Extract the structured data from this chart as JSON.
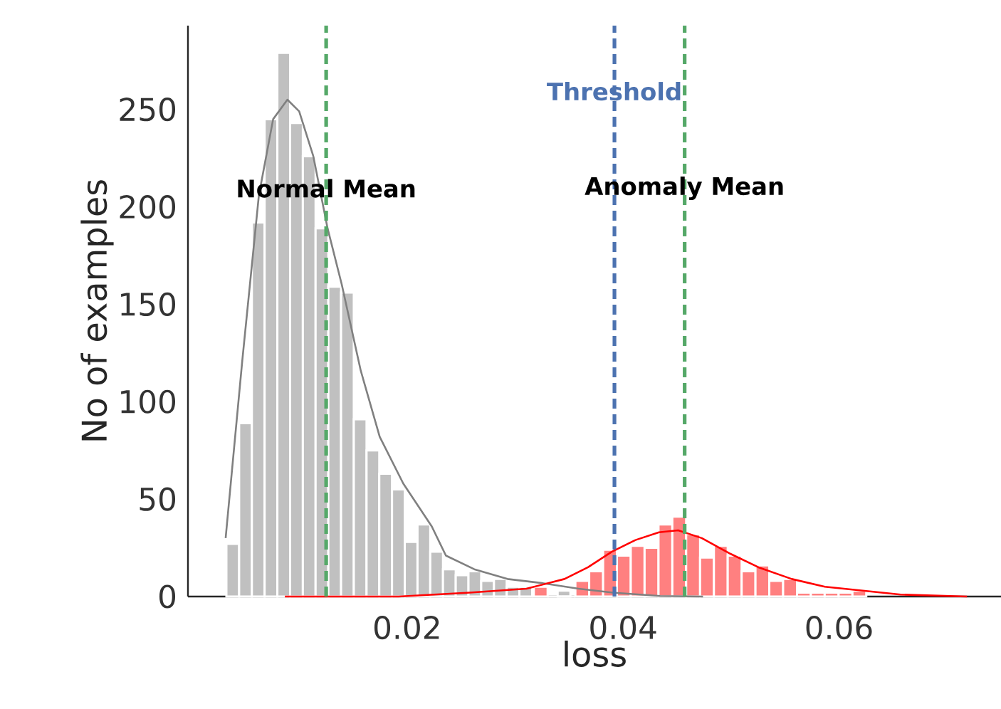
{
  "chart_data": {
    "type": "histogram",
    "xlabel": "loss",
    "ylabel": "No of examples",
    "xlim": [
      -0.0003,
      0.075
    ],
    "ylim": [
      0,
      293
    ],
    "xticks": [
      0.02,
      0.04,
      0.06
    ],
    "yticks": [
      0,
      50,
      100,
      150,
      200,
      250
    ],
    "grid": false,
    "series": [
      {
        "type": "histogram",
        "color": "#c0c0c0",
        "bins": [
          0.00326,
          0.00444,
          0.00562,
          0.0068,
          0.00798,
          0.00916,
          0.01034,
          0.01152,
          0.0127,
          0.01388,
          0.01506,
          0.01624,
          0.01742,
          0.0186,
          0.01978,
          0.02096,
          0.02214,
          0.02332,
          0.0245,
          0.02568,
          0.02686,
          0.02804,
          0.02922,
          0.0304,
          0.03158,
          0.03276,
          0.03394,
          0.03512,
          0.0363,
          0.03748,
          0.03866,
          0.03984,
          0.04102
        ],
        "values": [
          27,
          89,
          192,
          245,
          279,
          243,
          226,
          189,
          159,
          156,
          91,
          75,
          63,
          55,
          28,
          37,
          23,
          14,
          11,
          13,
          8,
          9,
          5,
          5,
          null,
          null,
          3,
          null,
          null,
          null,
          null,
          null
        ]
      },
      {
        "type": "histogram",
        "color": "#ff8080",
        "bins": [
          0.03173,
          0.03301,
          0.0343,
          0.03558,
          0.03686,
          0.03815,
          0.03943,
          0.04071,
          0.04199,
          0.04328,
          0.04456,
          0.04584,
          0.04713,
          0.04841,
          0.04969,
          0.05098,
          0.05226,
          0.05354,
          0.05482,
          0.05611,
          0.05739,
          0.05867,
          0.05996,
          0.06124,
          0.06252
        ],
        "values": [
          5,
          0,
          0,
          8,
          13,
          24,
          21,
          26,
          25,
          37,
          41,
          32,
          20,
          26,
          21,
          13,
          16,
          8,
          9,
          2,
          2,
          2,
          2,
          3
        ]
      },
      {
        "type": "line",
        "color": "#808080",
        "x": [
          0.00319,
          0.00473,
          0.00627,
          0.00759,
          0.00891,
          0.01,
          0.01131,
          0.01263,
          0.01395,
          0.0157,
          0.01746,
          0.01964,
          0.02228,
          0.02359,
          0.02622,
          0.02929,
          0.03237,
          0.03588,
          0.03904,
          0.04343,
          0.0474
        ],
        "values": [
          30,
          121,
          206,
          245,
          255,
          249,
          226,
          189,
          160,
          116,
          82,
          58,
          36,
          21,
          14,
          9,
          7,
          4,
          2,
          0.3,
          0
        ]
      },
      {
        "type": "line",
        "color": "#ff0000",
        "x": [
          0.00868,
          0.01921,
          0.02579,
          0.03105,
          0.03457,
          0.03675,
          0.03895,
          0.04115,
          0.04333,
          0.0451,
          0.04728,
          0.04991,
          0.05254,
          0.05562,
          0.05869,
          0.0622,
          0.0657,
          0.07185
        ],
        "values": [
          0,
          0,
          2,
          4,
          9,
          15,
          23,
          29,
          33,
          34,
          30,
          22,
          15,
          9,
          5,
          3,
          1,
          0
        ]
      }
    ],
    "ref_lines": [
      {
        "axis": "x",
        "value": 0.0125,
        "label": "Normal Mean",
        "color": "#55a868",
        "line_style": "dashed"
      },
      {
        "axis": "x",
        "value": 0.0392,
        "label": "Threshold",
        "color": "#4c72b0",
        "line_style": "dashed"
      },
      {
        "axis": "x",
        "value": 0.0457,
        "label": "Anomaly Mean",
        "color": "#55a868",
        "line_style": "dashed"
      }
    ]
  }
}
